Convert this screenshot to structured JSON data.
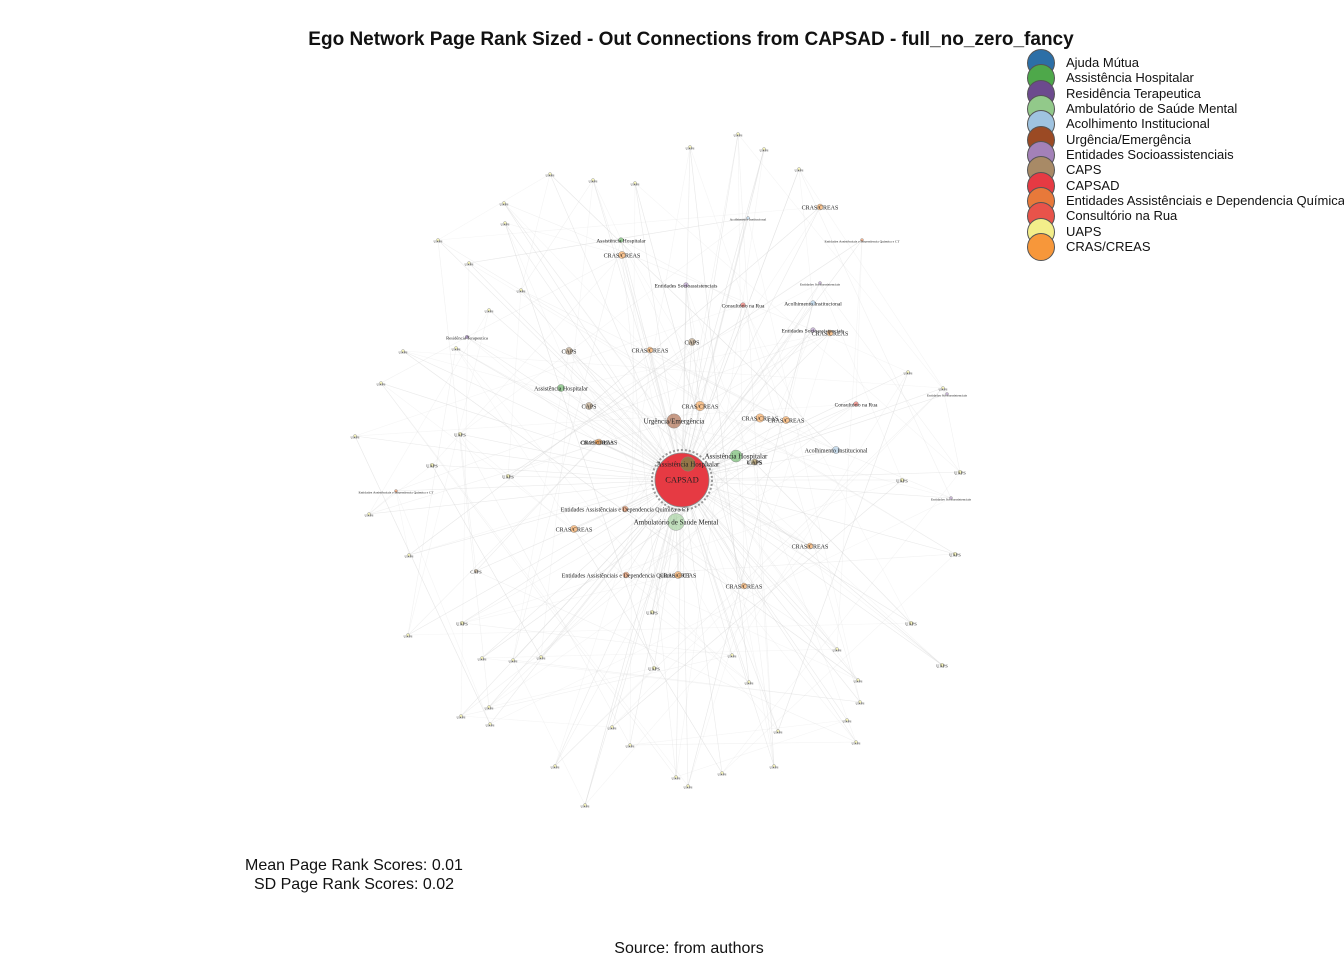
{
  "title": "Ego Network Page Rank Sized - Out Connections from CAPSAD - full_no_zero_fancy",
  "legend": [
    {
      "label": "Ajuda Mútua",
      "color": "#2c6fa7"
    },
    {
      "label": "Assistência Hospitalar",
      "color": "#4ea84a"
    },
    {
      "label": "Residência Terapeutica",
      "color": "#6c4a8e"
    },
    {
      "label": "Ambulatório de Saúde Mental",
      "color": "#92c98a"
    },
    {
      "label": "Acolhimento Institucional",
      "color": "#9fc3e0"
    },
    {
      "label": "Urgência/Emergência",
      "color": "#9b4a24"
    },
    {
      "label": "Entidades Socioassistenciais",
      "color": "#a381b8"
    },
    {
      "label": "CAPS",
      "color": "#a88a66"
    },
    {
      "label": "CAPSAD",
      "color": "#e63a43"
    },
    {
      "label": "Entidades Assistênciais e Dependencia Química",
      "color": "#e8793a"
    },
    {
      "label": "Consultório na Rua",
      "color": "#e8534a"
    },
    {
      "label": "UAPS",
      "color": "#f3ee8a"
    },
    {
      "label": "CRAS/CREAS",
      "color": "#f7973a"
    }
  ],
  "network": {
    "ego": "CAPSAD",
    "nodes": [
      {
        "label": "CAPSAD",
        "type": "CAPSAD",
        "rank": 1.0
      },
      {
        "label": "Assistência Hospitalar",
        "type": "Assistência Hospitalar",
        "rank": 0.12
      },
      {
        "label": "Ambulatório de Saúde Mental",
        "type": "Ambulatório de Saúde Mental",
        "rank": 0.14
      },
      {
        "label": "Urgência/Emergência",
        "type": "Urgência/Emergência",
        "rank": 0.12
      },
      {
        "label": "CRAS/CREAS",
        "type": "CRAS/CREAS",
        "rank": 0.08
      },
      {
        "label": "Assistência Hospitalar",
        "type": "Assistência Hospitalar",
        "rank": 0.1
      },
      {
        "label": "UAPS",
        "type": "UAPS",
        "rank": 0.05
      },
      {
        "label": "CRAS/CREAS",
        "type": "CRAS/CREAS",
        "rank": 0.07
      },
      {
        "label": "Acolhimento Institucional",
        "type": "Acolhimento Institucional",
        "rank": 0.06
      },
      {
        "label": "CRAS/CREAS",
        "type": "CRAS/CREAS",
        "rank": 0.06
      },
      {
        "label": "CAPS",
        "type": "CAPS",
        "rank": 0.06
      },
      {
        "label": "Entidades Assistênciais e Dependencia Química e CT",
        "type": "Entidades Assistênciais e Dependencia Química",
        "rank": 0.05
      },
      {
        "label": "CRAS/CREAS",
        "type": "CRAS/CREAS",
        "rank": 0.06
      },
      {
        "label": "Entidades Assistênciais e Dependencia Química e CT",
        "type": "Entidades Assistênciais e Dependencia Química",
        "rank": 0.05
      },
      {
        "label": "CRAS/CREAS",
        "type": "CRAS/CREAS",
        "rank": 0.06
      },
      {
        "label": "CRAS/CREAS",
        "type": "CRAS/CREAS",
        "rank": 0.05
      },
      {
        "label": "Assistência Hospitalar",
        "type": "Assistência Hospitalar",
        "rank": 0.06
      },
      {
        "label": "CRAS/CREAS",
        "type": "CRAS/CREAS",
        "rank": 0.05
      },
      {
        "label": "CAPS",
        "type": "CAPS",
        "rank": 0.06
      },
      {
        "label": "CRAS/CREAS",
        "type": "CRAS/CREAS",
        "rank": 0.06
      },
      {
        "label": "CAPS",
        "type": "CAPS",
        "rank": 0.06
      },
      {
        "label": "CRAS/CREAS",
        "type": "CRAS/CREAS",
        "rank": 0.05
      },
      {
        "label": "CRAS/CREAS",
        "type": "CRAS/CREAS",
        "rank": 0.05
      },
      {
        "label": "CRAS/CREAS",
        "type": "CRAS/CREAS",
        "rank": 0.05
      },
      {
        "label": "CAPS",
        "type": "CAPS",
        "rank": 0.05
      },
      {
        "label": "Consultório na Rua",
        "type": "Consultório na Rua",
        "rank": 0.04
      },
      {
        "label": "Acolhimento Institucional",
        "type": "Acolhimento Institucional",
        "rank": 0.04
      },
      {
        "label": "Consultório na Rua",
        "type": "Consultório na Rua",
        "rank": 0.04
      },
      {
        "label": "Entidades Socioassistenciais",
        "type": "Entidades Socioassistenciais",
        "rank": 0.04
      },
      {
        "label": "Entidades Socioassistenciais",
        "type": "Entidades Socioassistenciais",
        "rank": 0.04
      },
      {
        "label": "CRAS/CREAS",
        "type": "CRAS/CREAS",
        "rank": 0.05
      },
      {
        "label": "Assistência Hospitalar",
        "type": "Assistência Hospitalar",
        "rank": 0.04
      },
      {
        "label": "CRAS/CREAS",
        "type": "CRAS/CREAS",
        "rank": 0.04
      },
      {
        "label": "UAPS",
        "type": "UAPS",
        "rank": 0.03
      },
      {
        "label": "UAPS",
        "type": "UAPS",
        "rank": 0.03
      },
      {
        "label": "UAPS",
        "type": "UAPS",
        "rank": 0.03
      },
      {
        "label": "UAPS",
        "type": "UAPS",
        "rank": 0.03
      },
      {
        "label": "Residência Terapeutica",
        "type": "Residência Terapeutica",
        "rank": 0.03
      },
      {
        "label": "UAPS",
        "type": "UAPS",
        "rank": 0.03
      },
      {
        "label": "CAPS",
        "type": "CAPS",
        "rank": 0.03
      },
      {
        "label": "UAPS",
        "type": "UAPS",
        "rank": 0.03
      },
      {
        "label": "UAPS",
        "type": "UAPS",
        "rank": 0.03
      },
      {
        "label": "UAPS",
        "type": "UAPS",
        "rank": 0.03
      },
      {
        "label": "UAPS",
        "type": "UAPS",
        "rank": 0.03
      },
      {
        "label": "UAPS",
        "type": "UAPS",
        "rank": 0.03
      },
      {
        "label": "UAPS",
        "type": "UAPS",
        "rank": 0.03
      },
      {
        "label": "Entidades Assistênciais e Dependencia Química e CT",
        "type": "Entidades Assistênciais e Dependencia Química",
        "rank": 0.02
      },
      {
        "label": "Entidades Socioassistenciais",
        "type": "Entidades Socioassistenciais",
        "rank": 0.02
      },
      {
        "label": "Entidades Socioassistenciais",
        "type": "Entidades Socioassistenciais",
        "rank": 0.02
      },
      {
        "label": "Entidades Socioassistenciais",
        "type": "Entidades Socioassistenciais",
        "rank": 0.02
      },
      {
        "label": "Acolhimento Institucional",
        "type": "Acolhimento Institucional",
        "rank": 0.02
      },
      {
        "label": "Entidades Assistênciais e Dependencia Química e CT",
        "type": "Entidades Assistênciais e Dependencia Química",
        "rank": 0.02
      },
      {
        "label": "UAPS",
        "type": "UAPS",
        "rank": 0.02
      },
      {
        "label": "UAPS",
        "type": "UAPS",
        "rank": 0.02
      },
      {
        "label": "UAPS",
        "type": "UAPS",
        "rank": 0.02
      },
      {
        "label": "UAPS",
        "type": "UAPS",
        "rank": 0.02
      },
      {
        "label": "UAPS",
        "type": "UAPS",
        "rank": 0.02
      },
      {
        "label": "UAPS",
        "type": "UAPS",
        "rank": 0.02
      },
      {
        "label": "UAPS",
        "type": "UAPS",
        "rank": 0.02
      },
      {
        "label": "UAPS",
        "type": "UAPS",
        "rank": 0.02
      },
      {
        "label": "UAPS",
        "type": "UAPS",
        "rank": 0.02
      },
      {
        "label": "UAPS",
        "type": "UAPS",
        "rank": 0.02
      },
      {
        "label": "UAPS",
        "type": "UAPS",
        "rank": 0.02
      },
      {
        "label": "UAPS",
        "type": "UAPS",
        "rank": 0.02
      },
      {
        "label": "UAPS",
        "type": "UAPS",
        "rank": 0.02
      },
      {
        "label": "UAPS",
        "type": "UAPS",
        "rank": 0.02
      },
      {
        "label": "UAPS",
        "type": "UAPS",
        "rank": 0.02
      },
      {
        "label": "UAPS",
        "type": "UAPS",
        "rank": 0.02
      },
      {
        "label": "UAPS",
        "type": "UAPS",
        "rank": 0.02
      },
      {
        "label": "UAPS",
        "type": "UAPS",
        "rank": 0.02
      },
      {
        "label": "UAPS",
        "type": "UAPS",
        "rank": 0.02
      },
      {
        "label": "UAPS",
        "type": "UAPS",
        "rank": 0.02
      },
      {
        "label": "UAPS",
        "type": "UAPS",
        "rank": 0.02
      },
      {
        "label": "UAPS",
        "type": "UAPS",
        "rank": 0.02
      },
      {
        "label": "UAPS",
        "type": "UAPS",
        "rank": 0.02
      },
      {
        "label": "UAPS",
        "type": "UAPS",
        "rank": 0.02
      },
      {
        "label": "UAPS",
        "type": "UAPS",
        "rank": 0.02
      },
      {
        "label": "UAPS",
        "type": "UAPS",
        "rank": 0.02
      },
      {
        "label": "UAPS",
        "type": "UAPS",
        "rank": 0.02
      },
      {
        "label": "UAPS",
        "type": "UAPS",
        "rank": 0.02
      },
      {
        "label": "UAPS",
        "type": "UAPS",
        "rank": 0.02
      },
      {
        "label": "UAPS",
        "type": "UAPS",
        "rank": 0.02
      },
      {
        "label": "UAPS",
        "type": "UAPS",
        "rank": 0.02
      },
      {
        "label": "UAPS",
        "type": "UAPS",
        "rank": 0.02
      },
      {
        "label": "UAPS",
        "type": "UAPS",
        "rank": 0.02
      },
      {
        "label": "UAPS",
        "type": "UAPS",
        "rank": 0.02
      },
      {
        "label": "UAPS",
        "type": "UAPS",
        "rank": 0.02
      },
      {
        "label": "UAPS",
        "type": "UAPS",
        "rank": 0.02
      },
      {
        "label": "UAPS",
        "type": "UAPS",
        "rank": 0.02
      },
      {
        "label": "UAPS",
        "type": "UAPS",
        "rank": 0.02
      },
      {
        "label": "UAPS",
        "type": "UAPS",
        "rank": 0.02
      },
      {
        "label": "UAPS",
        "type": "UAPS",
        "rank": 0.02
      },
      {
        "label": "UAPS",
        "type": "UAPS",
        "rank": 0.02
      },
      {
        "label": "UAPS",
        "type": "UAPS",
        "rank": 0.02
      },
      {
        "label": "UAPS",
        "type": "UAPS",
        "rank": 0.02
      },
      {
        "label": "UAPS",
        "type": "UAPS",
        "rank": 0.02
      }
    ]
  },
  "stats": {
    "mean": "Mean Page Rank Scores: 0.01",
    "sd": "SD Page Rank Scores: 0.02"
  },
  "source": "Source: from authors"
}
